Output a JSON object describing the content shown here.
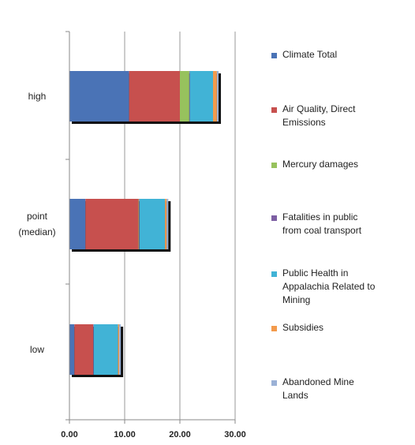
{
  "chart_data": {
    "type": "bar",
    "orientation": "horizontal",
    "stacked": true,
    "categories": [
      [
        "high"
      ],
      [
        "point",
        "(median)"
      ],
      [
        "low"
      ]
    ],
    "series": [
      {
        "name": [
          "Climate Total"
        ],
        "color": "#4a73b6",
        "values": [
          10.8,
          2.9,
          0.9
        ]
      },
      {
        "name": [
          "Air Quality, Direct",
          "Emissions"
        ],
        "color": "#c7504e",
        "values": [
          9.2,
          9.6,
          3.4
        ]
      },
      {
        "name": [
          "Mercury damages"
        ],
        "color": "#97c25d",
        "values": [
          1.7,
          0.1,
          0.0
        ]
      },
      {
        "name": [
          "Fatalities in public",
          "from coal transport"
        ],
        "color": "#7d5fa3",
        "values": [
          0.1,
          0.1,
          0.1
        ]
      },
      {
        "name": [
          "Public Health in",
          "Appalachia Related to",
          "Mining"
        ],
        "color": "#41b3d6",
        "values": [
          4.2,
          4.6,
          4.4
        ]
      },
      {
        "name": [
          "Subsidies"
        ],
        "color": "#f39a4c",
        "values": [
          0.7,
          0.3,
          0.2
        ]
      },
      {
        "name": [
          "Abandoned Mine",
          "Lands"
        ],
        "color": "#9bb1d6",
        "values": [
          0.3,
          0.3,
          0.3
        ]
      }
    ],
    "x_ticks": [
      "0.00",
      "10.00",
      "20.00",
      "30.00"
    ],
    "xlim": [
      0,
      30
    ],
    "grid": "vertical",
    "legend_position": "right"
  }
}
